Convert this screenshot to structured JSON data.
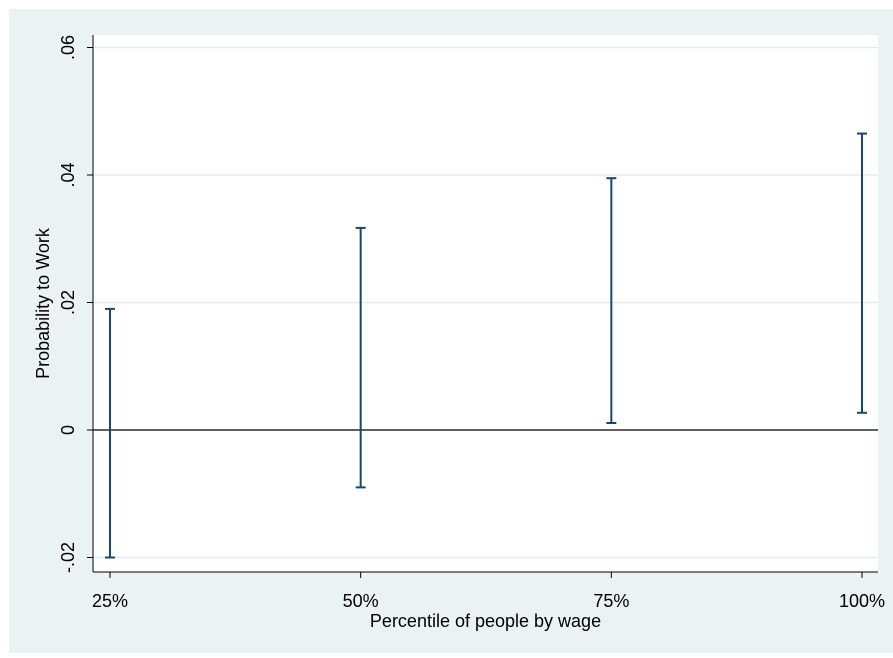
{
  "chart_data": {
    "type": "errorbar",
    "xlabel": "Percentile of people by wage",
    "ylabel": "Probability to Work",
    "categories": [
      "25%",
      "50%",
      "75%",
      "100%"
    ],
    "x_values": [
      25,
      50,
      75,
      100
    ],
    "intervals": [
      {
        "category": "25%",
        "lower": -0.02,
        "upper": 0.019
      },
      {
        "category": "50%",
        "lower": -0.009,
        "upper": 0.0317
      },
      {
        "category": "75%",
        "lower": 0.0011,
        "upper": 0.0395
      },
      {
        "category": "100%",
        "lower": 0.0027,
        "upper": 0.0465
      }
    ],
    "y_ticks": [
      -0.02,
      0,
      0.02,
      0.04,
      0.06
    ],
    "y_tick_labels": [
      "-.02",
      "0",
      ".02",
      ".04",
      ".06"
    ],
    "ylim": [
      -0.022,
      0.062
    ],
    "xlim": [
      23.5,
      100.7
    ],
    "grid": true,
    "reference_line_y": 0,
    "colors": {
      "outer_background": "#eaf2f3",
      "plot_background": "#ffffff",
      "gridline": "#e6ecee",
      "errorbar": "#1a476f",
      "reference_line": "#000000"
    }
  }
}
